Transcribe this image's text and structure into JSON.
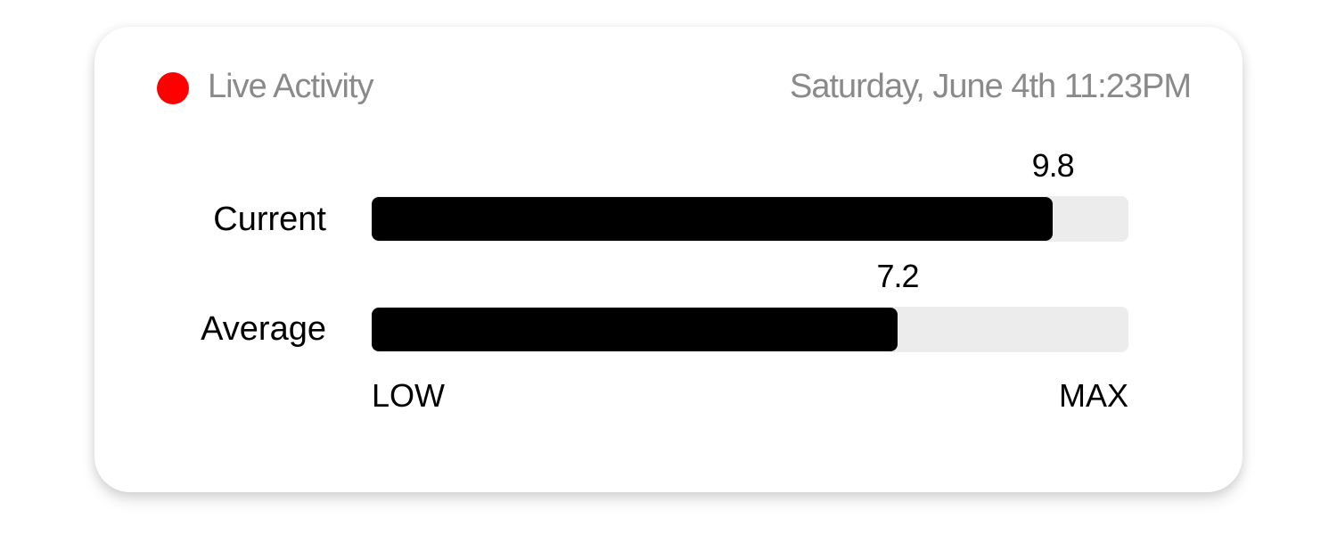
{
  "header": {
    "title": "Live Activity",
    "datetime": "Saturday, June 4th 11:23PM",
    "live_indicator_color": "#ff0000"
  },
  "scale": {
    "low_label": "LOW",
    "max_label": "MAX"
  },
  "meters": [
    {
      "label": "Current",
      "value": "9.8",
      "fraction": 0.9
    },
    {
      "label": "Average",
      "value": "7.2",
      "fraction": 0.695
    }
  ]
}
